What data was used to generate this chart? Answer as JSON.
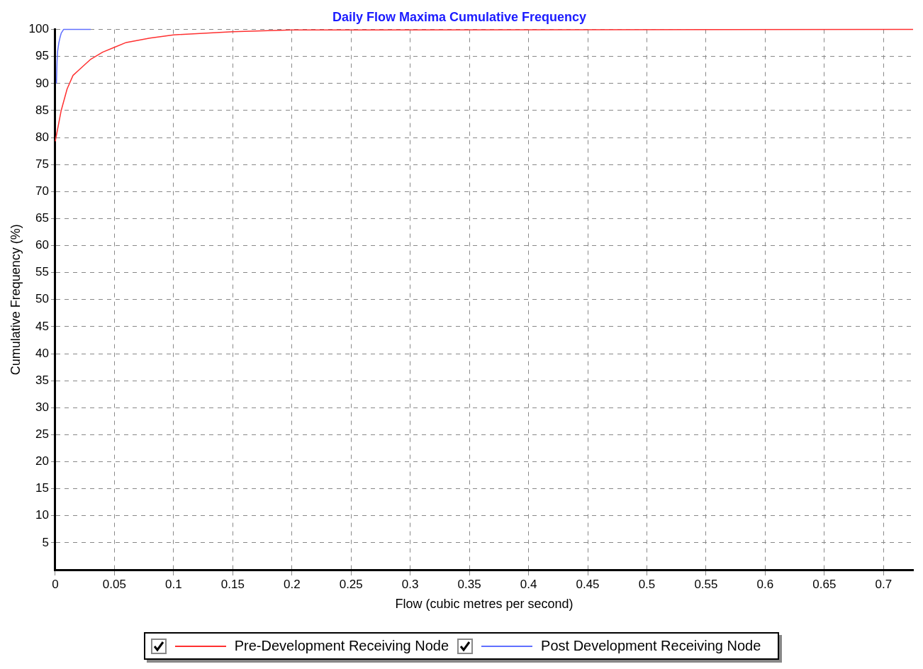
{
  "chart_data": {
    "type": "line",
    "title": "Daily Flow Maxima Cumulative Frequency",
    "xlabel": "Flow (cubic metres per second)",
    "ylabel": "Cumulative Frequency (%)",
    "xlim": [
      0,
      0.725
    ],
    "xticks": [
      0,
      0.05,
      0.1,
      0.15,
      0.2,
      0.25,
      0.3,
      0.35,
      0.4,
      0.45,
      0.5,
      0.55,
      0.6,
      0.65,
      0.7
    ],
    "ylim": [
      0,
      100
    ],
    "yticks": [
      5,
      10,
      15,
      20,
      25,
      30,
      35,
      40,
      45,
      50,
      55,
      60,
      65,
      70,
      75,
      80,
      85,
      90,
      95,
      100
    ],
    "grid": true,
    "legend": "bottom",
    "marker": "none",
    "line_style": "solid",
    "series": [
      {
        "name": "Pre-Development Receiving Node",
        "color": "#ff3030",
        "x": [
          0,
          0.005,
          0.01,
          0.015,
          0.02,
          0.03,
          0.04,
          0.05,
          0.06,
          0.08,
          0.1,
          0.15,
          0.2,
          0.725
        ],
        "values": [
          79.3,
          85,
          89,
          91.5,
          92.5,
          94.5,
          95.8,
          96.7,
          97.6,
          98.4,
          99,
          99.6,
          99.9,
          100
        ]
      },
      {
        "name": "Post Development Receiving Node",
        "color": "#6070ff",
        "x": [
          0.001,
          0.0015,
          0.002,
          0.003,
          0.004,
          0.005,
          0.007,
          0.03
        ],
        "values": [
          90,
          94,
          96,
          97.5,
          98.5,
          99.3,
          100,
          100
        ]
      }
    ]
  }
}
